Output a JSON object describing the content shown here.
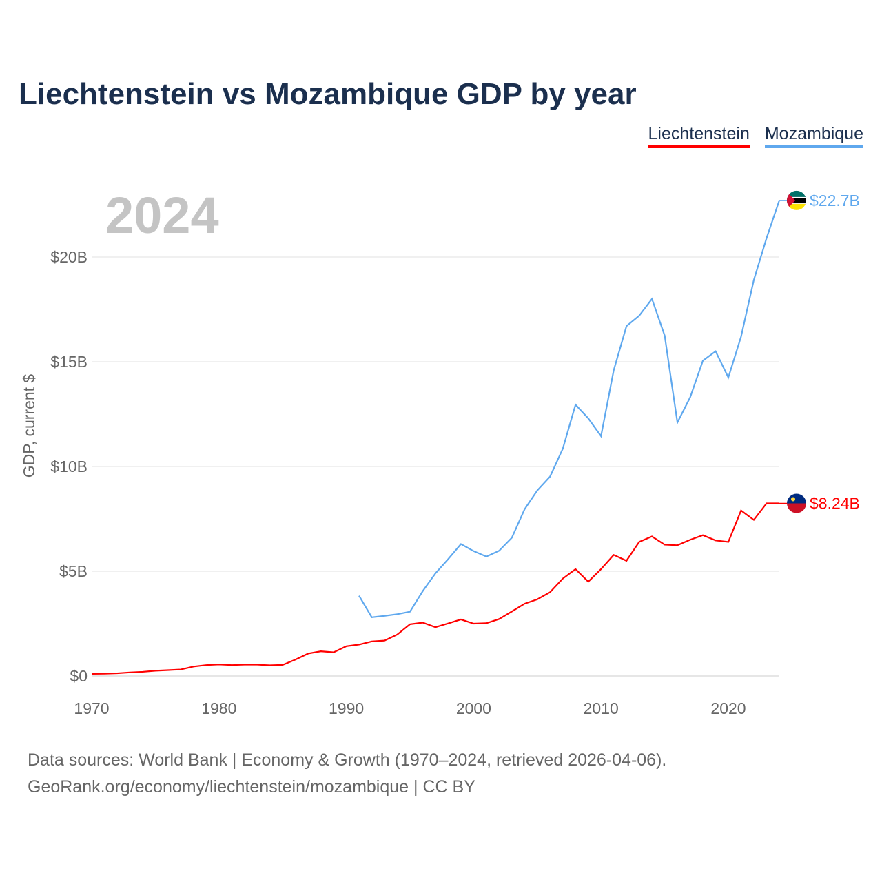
{
  "chart_data": {
    "type": "line",
    "title": "Liechtenstein vs Mozambique GDP by year",
    "ylabel": "GDP, current $",
    "xlabel": "",
    "year_watermark": "2024",
    "xlim": [
      1970,
      2024
    ],
    "ylim": [
      0,
      22.7
    ],
    "x_ticks": [
      "1970",
      "1980",
      "1990",
      "2000",
      "2010",
      "2020"
    ],
    "y_ticks": [
      {
        "value": 0,
        "label": "$0"
      },
      {
        "value": 5,
        "label": "$5B"
      },
      {
        "value": 10,
        "label": "$10B"
      },
      {
        "value": 15,
        "label": "$15B"
      },
      {
        "value": 20,
        "label": "$20B"
      }
    ],
    "grid": true,
    "legend_placement": "top-right",
    "series": [
      {
        "name": "Liechtenstein",
        "color": "#ff0000",
        "end_label": "$8.24B",
        "start_year": 1970,
        "values": [
          0.1,
          0.11,
          0.13,
          0.17,
          0.2,
          0.25,
          0.28,
          0.31,
          0.45,
          0.52,
          0.55,
          0.52,
          0.54,
          0.54,
          0.51,
          0.53,
          0.78,
          1.07,
          1.18,
          1.13,
          1.42,
          1.5,
          1.65,
          1.69,
          1.98,
          2.47,
          2.55,
          2.33,
          2.51,
          2.7,
          2.5,
          2.52,
          2.72,
          3.08,
          3.45,
          3.66,
          4.0,
          4.65,
          5.1,
          4.5,
          5.1,
          5.78,
          5.5,
          6.4,
          6.66,
          6.27,
          6.24,
          6.5,
          6.72,
          6.47,
          6.4,
          7.9,
          7.45,
          8.24,
          8.24
        ]
      },
      {
        "name": "Mozambique",
        "color": "#5fa8ee",
        "end_label": "$22.7B",
        "start_year": 1991,
        "values": [
          3.83,
          2.8,
          2.87,
          2.95,
          3.07,
          4.05,
          4.9,
          5.58,
          6.3,
          5.96,
          5.7,
          5.98,
          6.6,
          7.96,
          8.86,
          9.52,
          10.85,
          12.95,
          12.3,
          11.45,
          14.6,
          16.7,
          17.2,
          18.0,
          16.25,
          12.1,
          13.3,
          15.05,
          15.5,
          14.25,
          16.2,
          18.9,
          20.9,
          22.7
        ]
      }
    ]
  },
  "source": {
    "line1": "Data sources: World Bank | Economy & Growth (1970–2024, retrieved 2026-04-06).",
    "line2": "GeoRank.org/economy/liechtenstein/mozambique | CC BY"
  }
}
